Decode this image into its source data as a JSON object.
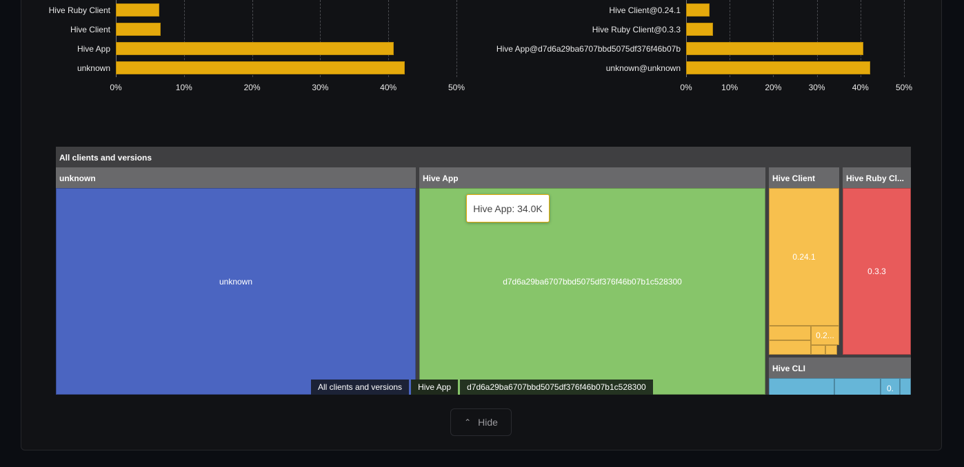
{
  "chart_data": [
    {
      "type": "bar",
      "orientation": "horizontal",
      "categories": [
        "Hive Ruby Client",
        "Hive Client",
        "Hive App",
        "unknown"
      ],
      "values": [
        6.4,
        6.6,
        40.8,
        42.4
      ],
      "xlim": [
        0,
        50
      ],
      "xticks": [
        "0%",
        "10%",
        "20%",
        "30%",
        "40%",
        "50%"
      ],
      "grid": true,
      "color": "#e5aa0c"
    },
    {
      "type": "bar",
      "orientation": "horizontal",
      "categories": [
        "Hive Client@0.24.1",
        "Hive Ruby Client@0.3.3",
        "Hive App@d7d6a29ba6707bbd5075df376f46b07b",
        "unknown@unknown"
      ],
      "values": [
        5.4,
        6.2,
        40.7,
        42.2
      ],
      "xlim": [
        0,
        50
      ],
      "xticks": [
        "0%",
        "10%",
        "20%",
        "30%",
        "40%",
        "50%"
      ],
      "grid": true,
      "color": "#e5aa0c"
    }
  ],
  "treemap": {
    "root": "All clients and versions",
    "groups": [
      {
        "name": "unknown",
        "color": "#4b65c1",
        "cells": [
          "unknown"
        ]
      },
      {
        "name": "Hive App",
        "color": "#87c56a",
        "cells": [
          "d7d6a29ba6707bbd5075df376f46b07b1c528300"
        ]
      },
      {
        "name": "Hive Client",
        "color": "#f7c04e",
        "cells": [
          "0.24.1",
          "0.2..."
        ]
      },
      {
        "name": "Hive Ruby Cl...",
        "color": "#e85b5b",
        "cells": [
          "0.3.3"
        ]
      },
      {
        "name": "Hive CLI",
        "color": "#66b6d8",
        "cells": [
          "0."
        ]
      }
    ],
    "tooltip": "Hive App: 34.0K",
    "breadcrumb": [
      "All clients and versions",
      "Hive App",
      "d7d6a29ba6707bbd5075df376f46b07b1c528300"
    ]
  },
  "hide_button": {
    "label": "Hide",
    "icon": "chevron-up-icon"
  }
}
